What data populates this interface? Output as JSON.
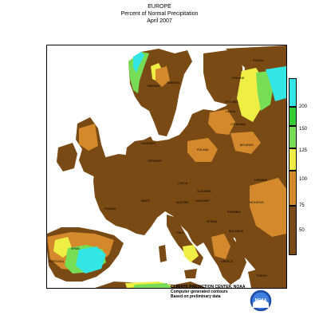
{
  "title": {
    "line1": "EUROPE",
    "line2": "Percent of Normal Precipitation",
    "line3": "April 2007"
  },
  "legend": {
    "items": [
      {
        "label": "200",
        "color": "#33e6e6"
      },
      {
        "label": "150",
        "color": "#33cc33"
      },
      {
        "label": "125",
        "color": "#77dd55"
      },
      {
        "label": "100",
        "color": "#eeee44"
      },
      {
        "label": "75",
        "color": "#d48a2c"
      },
      {
        "label": "50",
        "color": "#7a4a15"
      }
    ]
  },
  "countries": [
    {
      "name": "NORWAY"
    },
    {
      "name": "SWEDEN"
    },
    {
      "name": "FINLAND"
    },
    {
      "name": "RUSSIA"
    },
    {
      "name": "ESTONIA"
    },
    {
      "name": "LATVIA"
    },
    {
      "name": "LITHUANIA"
    },
    {
      "name": "BELARUS"
    },
    {
      "name": "POLAND"
    },
    {
      "name": "GERMANY"
    },
    {
      "name": "FRANCE"
    },
    {
      "name": "CZECH"
    },
    {
      "name": "AUSTRIA"
    },
    {
      "name": "ITALY"
    },
    {
      "name": "UKRAINE"
    },
    {
      "name": "ROMANIA"
    },
    {
      "name": "BULGARIA"
    },
    {
      "name": "SPAIN"
    },
    {
      "name": "PORTUGAL"
    },
    {
      "name": "GREECE"
    },
    {
      "name": "TURKEY"
    },
    {
      "name": "SERBIA"
    },
    {
      "name": "HUNGARY"
    },
    {
      "name": "SLOVAKIA"
    },
    {
      "name": "MOLDOVA"
    },
    {
      "name": "DENMARK"
    },
    {
      "name": "SWITZ"
    }
  ],
  "credits": {
    "line1": "CLIMATE PREDICTION CENTER, NOAA",
    "line2": "Computer generated contours",
    "line3": "Based on preliminary data"
  },
  "logo_text": "NOAA",
  "colors": {
    "ocean": "#ffffff",
    "dry": "#7a4a15",
    "below": "#d48a2c",
    "normal": "#eeee44",
    "above": "#77dd55",
    "wet": "#33cc33",
    "verywet": "#33e6e6"
  }
}
